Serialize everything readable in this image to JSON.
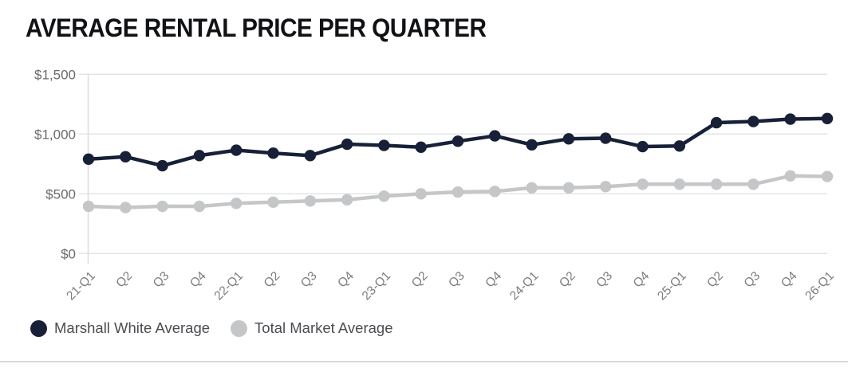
{
  "chart_data": {
    "type": "line",
    "title": "AVERAGE RENTAL PRICE PER QUARTER",
    "categories": [
      "21-Q1",
      "Q2",
      "Q3",
      "Q4",
      "22-Q1",
      "Q2",
      "Q3",
      "Q4",
      "23-Q1",
      "Q2",
      "Q3",
      "Q4",
      "24-Q1",
      "Q2",
      "Q3",
      "Q4",
      "25-Q1",
      "Q2",
      "Q3",
      "Q4",
      "26-Q1"
    ],
    "series": [
      {
        "name": "Marshall White Average",
        "color": "#182038",
        "values": [
          790,
          810,
          735,
          820,
          865,
          840,
          820,
          915,
          905,
          890,
          940,
          985,
          910,
          960,
          965,
          895,
          900,
          1095,
          1105,
          1125,
          1130
        ]
      },
      {
        "name": "Total Market Average",
        "color": "#c5c6c8",
        "values": [
          395,
          385,
          395,
          395,
          420,
          430,
          440,
          450,
          480,
          500,
          515,
          520,
          550,
          550,
          560,
          580,
          580,
          580,
          580,
          650,
          645
        ]
      }
    ],
    "ylim": [
      0,
      1500
    ],
    "yticks": [
      {
        "label": "$0",
        "value": 0
      },
      {
        "label": "$500",
        "value": 500
      },
      {
        "label": "$1,000",
        "value": 1000
      },
      {
        "label": "$1,500",
        "value": 1500
      }
    ],
    "xlabel": "",
    "ylabel": "",
    "grid": true,
    "legend_position": "bottom-left"
  }
}
